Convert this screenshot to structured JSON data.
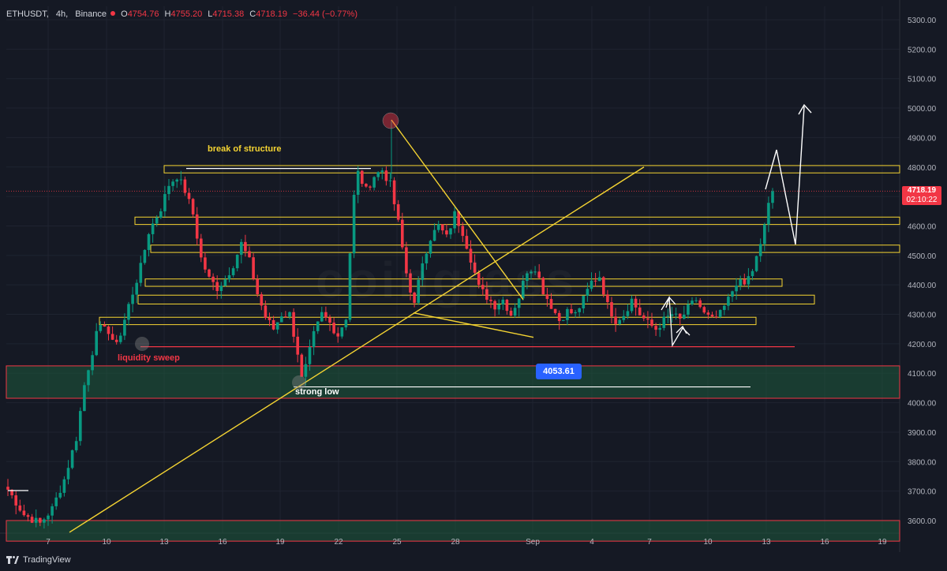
{
  "header": {
    "symbol": "ETHUSDT",
    "interval": "4h",
    "exchange": "Binance",
    "open_label": "O",
    "open": "4754.76",
    "high_label": "H",
    "high": "4755.20",
    "low_label": "L",
    "low": "4715.38",
    "close_label": "C",
    "close": "4718.19",
    "change": "−36.44 (−0.77%)"
  },
  "price_tag": {
    "price": "4718.19",
    "countdown": "02:10:22"
  },
  "callout": {
    "value": "4053.61"
  },
  "annotations": {
    "break_of_structure": "break of structure",
    "liquidity_sweep": "liquidity sweep",
    "strong_low": "strong low"
  },
  "watermark": "coinglass",
  "branding": {
    "name": "TradingView"
  },
  "colors": {
    "background": "#151924",
    "up": "#089981",
    "down": "#f23645",
    "zone_yellow": "#f5d432",
    "trendline": "#f5d432",
    "green_zone": "#1e5a3c",
    "red_line": "#f23645",
    "grid": "#1f2430"
  },
  "chart_data": {
    "type": "candlestick",
    "symbol": "ETHUSDT",
    "interval": "4h",
    "y_ticks": [
      5300,
      5200,
      5100,
      5000,
      4900,
      4800,
      4700,
      4600,
      4500,
      4400,
      4300,
      4200,
      4100,
      4000,
      3900,
      3800,
      3700,
      3600
    ],
    "y_tick_labels": [
      "5300.00",
      "5200.00",
      "5100.00",
      "5000.00",
      "4900.00",
      "4800.00",
      "4700.00",
      "4600.00",
      "4500.00",
      "4400.00",
      "4300.00",
      "4200.00",
      "4100.00",
      "4000.00",
      "3900.00",
      "3800.00",
      "3700.00",
      "3600.00"
    ],
    "x_tick_labels": [
      "7",
      "10",
      "13",
      "16",
      "19",
      "22",
      "25",
      "28",
      "Sep",
      "4",
      "7",
      "10",
      "13",
      "16",
      "19"
    ],
    "ylim": [
      3560,
      5320
    ],
    "last_price": 4718.19,
    "price_path": [
      [
        0,
        3705
      ],
      [
        4,
        3620
      ],
      [
        8,
        3590
      ],
      [
        11,
        3640
      ],
      [
        14,
        3740
      ],
      [
        17,
        3880
      ],
      [
        19,
        4060
      ],
      [
        20,
        4120
      ],
      [
        22,
        4230
      ],
      [
        24,
        4270
      ],
      [
        26,
        4200
      ],
      [
        28,
        4230
      ],
      [
        30,
        4330
      ],
      [
        33,
        4460
      ],
      [
        35,
        4580
      ],
      [
        38,
        4660
      ],
      [
        40,
        4740
      ],
      [
        42,
        4770
      ],
      [
        44,
        4720
      ],
      [
        46,
        4640
      ],
      [
        48,
        4490
      ],
      [
        50,
        4420
      ],
      [
        52,
        4390
      ],
      [
        54,
        4420
      ],
      [
        56,
        4470
      ],
      [
        58,
        4540
      ],
      [
        60,
        4480
      ],
      [
        62,
        4370
      ],
      [
        64,
        4290
      ],
      [
        66,
        4250
      ],
      [
        68,
        4300
      ],
      [
        70,
        4300
      ],
      [
        72,
        4170
      ],
      [
        73,
        4080
      ],
      [
        74,
        4120
      ],
      [
        76,
        4230
      ],
      [
        78,
        4300
      ],
      [
        80,
        4270
      ],
      [
        82,
        4230
      ],
      [
        84,
        4290
      ],
      [
        85,
        4510
      ],
      [
        86,
        4700
      ],
      [
        87,
        4780
      ],
      [
        89,
        4720
      ],
      [
        91,
        4770
      ],
      [
        93,
        4790
      ],
      [
        95,
        4740
      ],
      [
        97,
        4610
      ],
      [
        99,
        4440
      ],
      [
        101,
        4330
      ],
      [
        103,
        4480
      ],
      [
        105,
        4560
      ],
      [
        107,
        4600
      ],
      [
        109,
        4560
      ],
      [
        111,
        4640
      ],
      [
        113,
        4580
      ],
      [
        115,
        4490
      ],
      [
        117,
        4390
      ],
      [
        119,
        4360
      ],
      [
        121,
        4330
      ],
      [
        123,
        4350
      ],
      [
        125,
        4300
      ],
      [
        127,
        4360
      ],
      [
        129,
        4450
      ],
      [
        131,
        4460
      ],
      [
        133,
        4380
      ],
      [
        135,
        4330
      ],
      [
        137,
        4280
      ],
      [
        139,
        4310
      ],
      [
        141,
        4300
      ],
      [
        143,
        4350
      ],
      [
        145,
        4410
      ],
      [
        147,
        4430
      ],
      [
        149,
        4330
      ],
      [
        151,
        4280
      ],
      [
        153,
        4300
      ],
      [
        155,
        4350
      ],
      [
        157,
        4300
      ],
      [
        159,
        4270
      ],
      [
        161,
        4250
      ],
      [
        163,
        4280
      ],
      [
        165,
        4300
      ],
      [
        167,
        4280
      ],
      [
        169,
        4320
      ],
      [
        171,
        4350
      ],
      [
        173,
        4300
      ],
      [
        175,
        4280
      ],
      [
        177,
        4300
      ],
      [
        179,
        4350
      ],
      [
        181,
        4410
      ],
      [
        183,
        4400
      ],
      [
        185,
        4450
      ],
      [
        187,
        4530
      ],
      [
        189,
        4680
      ],
      [
        190,
        4718
      ]
    ],
    "zones": [
      {
        "low": 4780,
        "high": 4805
      },
      {
        "low": 4605,
        "high": 4630
      },
      {
        "low": 4510,
        "high": 4535
      },
      {
        "low": 4395,
        "high": 4420
      },
      {
        "low": 4335,
        "high": 4365
      },
      {
        "low": 4265,
        "high": 4290
      }
    ],
    "support_zones": [
      {
        "low": 4015,
        "high": 4125
      },
      {
        "low": 3530,
        "high": 3600
      }
    ],
    "lines": {
      "liquidity_sweep": 4190,
      "strong_low": 4053.61
    }
  }
}
